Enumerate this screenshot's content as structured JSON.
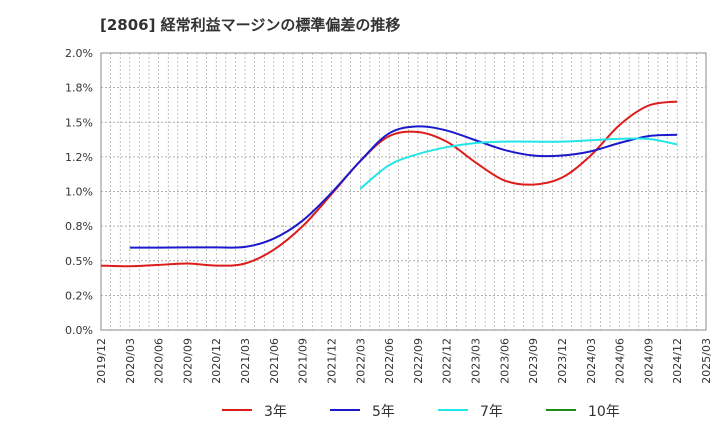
{
  "chart_data": {
    "type": "line",
    "title": "[2806]  経常利益マージンの標準偏差の推移",
    "xlabel": "",
    "ylabel": "",
    "ylim": [
      0,
      2.0
    ],
    "y_ticks": [
      "0.0%",
      "0.2%",
      "0.5%",
      "0.8%",
      "1.0%",
      "1.2%",
      "1.5%",
      "1.8%",
      "2.0%"
    ],
    "x_ticks": [
      "2019/12",
      "2020/03",
      "2020/06",
      "2020/09",
      "2020/12",
      "2021/03",
      "2021/06",
      "2021/09",
      "2021/12",
      "2022/03",
      "2022/06",
      "2022/09",
      "2022/12",
      "2023/03",
      "2023/06",
      "2023/09",
      "2023/12",
      "2024/03",
      "2024/06",
      "2024/09",
      "2024/12",
      "2025/03"
    ],
    "grid": true,
    "legend_position": "bottom",
    "series": [
      {
        "name": "3年",
        "color": "#dd1c1c",
        "x": [
          "2019/12",
          "2020/03",
          "2020/06",
          "2020/09",
          "2020/12",
          "2021/03",
          "2021/06",
          "2021/09",
          "2021/12",
          "2022/03",
          "2022/06",
          "2022/09",
          "2022/12",
          "2023/03",
          "2023/06",
          "2023/09",
          "2023/12",
          "2024/03",
          "2024/06",
          "2024/09",
          "2024/12"
        ],
        "values": [
          0.465,
          0.46,
          0.47,
          0.48,
          0.465,
          0.48,
          0.58,
          0.75,
          0.98,
          1.22,
          1.4,
          1.43,
          1.36,
          1.21,
          1.08,
          1.05,
          1.1,
          1.26,
          1.48,
          1.62,
          1.65
        ]
      },
      {
        "name": "5年",
        "color": "#1a1acc",
        "x": [
          "2020/03",
          "2020/06",
          "2020/09",
          "2020/12",
          "2021/03",
          "2021/06",
          "2021/09",
          "2021/12",
          "2022/03",
          "2022/06",
          "2022/09",
          "2022/12",
          "2023/03",
          "2023/06",
          "2023/09",
          "2023/12",
          "2024/03",
          "2024/06",
          "2024/09",
          "2024/12"
        ],
        "values": [
          0.595,
          0.595,
          0.597,
          0.597,
          0.6,
          0.66,
          0.79,
          0.99,
          1.22,
          1.42,
          1.47,
          1.44,
          1.37,
          1.3,
          1.26,
          1.26,
          1.29,
          1.35,
          1.4,
          1.41
        ]
      },
      {
        "name": "7年",
        "color": "#22e5e5",
        "x": [
          "2022/03",
          "2022/06",
          "2022/09",
          "2022/12",
          "2023/03",
          "2023/06",
          "2023/09",
          "2023/12",
          "2024/03",
          "2024/06",
          "2024/09",
          "2024/12"
        ],
        "values": [
          1.02,
          1.19,
          1.27,
          1.32,
          1.35,
          1.36,
          1.36,
          1.36,
          1.37,
          1.38,
          1.38,
          1.34
        ]
      },
      {
        "name": "10年",
        "color": "#1a8c1a",
        "x": [],
        "values": []
      }
    ]
  }
}
